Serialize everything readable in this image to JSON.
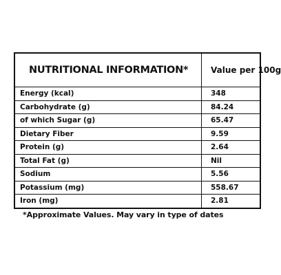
{
  "table": {
    "header": {
      "name": "NUTRITIONAL INFORMATION*",
      "value": "Value per 100g"
    },
    "rows": [
      {
        "label": "Energy (kcal)",
        "value": "348"
      },
      {
        "label": "Carbohydrate (g)",
        "value": "84.24"
      },
      {
        "label": "of which Sugar (g)",
        "value": "65.47"
      },
      {
        "label": "Dietary Fiber",
        "value": "9.59"
      },
      {
        "label": "Protein (g)",
        "value": "2.64"
      },
      {
        "label": "Total Fat (g)",
        "value": "Nil"
      },
      {
        "label": "Sodium",
        "value": "5.56"
      },
      {
        "label": "Potassium (mg)",
        "value": "558.67"
      },
      {
        "label": "Iron (mg)",
        "value": "2.81"
      }
    ]
  },
  "footnote": "*Approximate Values. May vary in type of dates"
}
